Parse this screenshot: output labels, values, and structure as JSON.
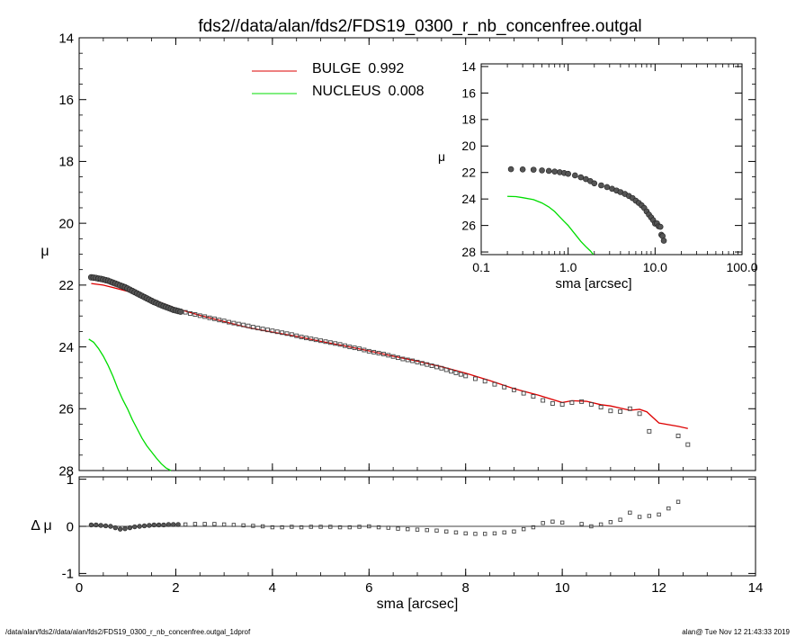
{
  "title": "fds2//data/alan/fds2/FDS19_0300_r_nb_concenfree.outgal",
  "footer": {
    "left": "/data/alan/fds2//data/alan/fds2/FDS19_0300_r_nb_concenfree.outgal_1dprof",
    "right": "alan@  Tue Nov 12 21:43:33 2019"
  },
  "legend": {
    "bulge": {
      "label": "BULGE",
      "value": "0.992",
      "color": "#dd0000"
    },
    "nucleus": {
      "label": "NUCLEUS",
      "value": "0.008",
      "color": "#00dd00"
    }
  },
  "chart_data": [
    {
      "name": "main-profile",
      "type": "scatter",
      "xlabel": "sma [arcsec]",
      "ylabel": "μ",
      "xlim": [
        0,
        14
      ],
      "ylim": [
        28,
        14
      ],
      "xticks": [
        0,
        2,
        4,
        6,
        8,
        10,
        12,
        14
      ],
      "yticks": [
        14,
        16,
        18,
        20,
        22,
        24,
        26,
        28
      ],
      "dense_points": [
        [
          0.25,
          21.75
        ],
        [
          0.3,
          21.76
        ],
        [
          0.35,
          21.77
        ],
        [
          0.4,
          21.79
        ],
        [
          0.45,
          21.8
        ],
        [
          0.5,
          21.82
        ],
        [
          0.55,
          21.84
        ],
        [
          0.6,
          21.86
        ],
        [
          0.65,
          21.89
        ],
        [
          0.7,
          21.92
        ],
        [
          0.75,
          21.95
        ],
        [
          0.8,
          21.98
        ],
        [
          0.85,
          22.01
        ],
        [
          0.9,
          22.04
        ],
        [
          0.95,
          22.07
        ],
        [
          1.0,
          22.11
        ],
        [
          1.05,
          22.15
        ],
        [
          1.1,
          22.19
        ],
        [
          1.15,
          22.23
        ],
        [
          1.2,
          22.27
        ],
        [
          1.25,
          22.31
        ],
        [
          1.3,
          22.35
        ],
        [
          1.35,
          22.39
        ],
        [
          1.4,
          22.43
        ],
        [
          1.45,
          22.47
        ],
        [
          1.5,
          22.51
        ],
        [
          1.55,
          22.55
        ],
        [
          1.6,
          22.58
        ],
        [
          1.65,
          22.62
        ],
        [
          1.7,
          22.65
        ],
        [
          1.75,
          22.68
        ],
        [
          1.8,
          22.71
        ],
        [
          1.85,
          22.74
        ],
        [
          1.9,
          22.77
        ],
        [
          1.95,
          22.8
        ],
        [
          2.0,
          22.82
        ],
        [
          2.05,
          22.84
        ],
        [
          2.1,
          22.86
        ]
      ],
      "sparse_points": [
        [
          2.2,
          22.88
        ],
        [
          2.3,
          22.92
        ],
        [
          2.4,
          22.95
        ],
        [
          2.5,
          22.99
        ],
        [
          2.6,
          23.02
        ],
        [
          2.7,
          23.06
        ],
        [
          2.8,
          23.09
        ],
        [
          2.9,
          23.13
        ],
        [
          3.0,
          23.16
        ],
        [
          3.1,
          23.2
        ],
        [
          3.2,
          23.23
        ],
        [
          3.3,
          23.26
        ],
        [
          3.4,
          23.29
        ],
        [
          3.5,
          23.32
        ],
        [
          3.6,
          23.36
        ],
        [
          3.7,
          23.39
        ],
        [
          3.8,
          23.42
        ],
        [
          3.9,
          23.45
        ],
        [
          4.0,
          23.48
        ],
        [
          4.1,
          23.51
        ],
        [
          4.2,
          23.54
        ],
        [
          4.3,
          23.57
        ],
        [
          4.4,
          23.6
        ],
        [
          4.5,
          23.64
        ],
        [
          4.6,
          23.68
        ],
        [
          4.7,
          23.71
        ],
        [
          4.8,
          23.74
        ],
        [
          4.9,
          23.77
        ],
        [
          5.0,
          23.8
        ],
        [
          5.1,
          23.83
        ],
        [
          5.2,
          23.86
        ],
        [
          5.3,
          23.89
        ],
        [
          5.4,
          23.92
        ],
        [
          5.5,
          23.96
        ],
        [
          5.6,
          24.0
        ],
        [
          5.7,
          24.03
        ],
        [
          5.8,
          24.06
        ],
        [
          5.9,
          24.1
        ],
        [
          6.0,
          24.14
        ],
        [
          6.1,
          24.17
        ],
        [
          6.2,
          24.2
        ],
        [
          6.3,
          24.23
        ],
        [
          6.4,
          24.27
        ],
        [
          6.5,
          24.31
        ],
        [
          6.6,
          24.35
        ],
        [
          6.7,
          24.39
        ],
        [
          6.8,
          24.42
        ],
        [
          6.9,
          24.45
        ],
        [
          7.0,
          24.49
        ],
        [
          7.1,
          24.53
        ],
        [
          7.2,
          24.57
        ],
        [
          7.3,
          24.61
        ],
        [
          7.4,
          24.65
        ],
        [
          7.5,
          24.69
        ],
        [
          7.6,
          24.74
        ],
        [
          7.7,
          24.79
        ],
        [
          7.8,
          24.84
        ],
        [
          7.9,
          24.89
        ],
        [
          8.0,
          24.94
        ],
        [
          8.2,
          25.03
        ],
        [
          8.4,
          25.11
        ],
        [
          8.6,
          25.21
        ],
        [
          8.8,
          25.3
        ],
        [
          9.0,
          25.39
        ],
        [
          9.2,
          25.5
        ],
        [
          9.4,
          25.6
        ],
        [
          9.6,
          25.73
        ],
        [
          9.8,
          25.83
        ],
        [
          10.0,
          25.86
        ],
        [
          10.2,
          25.8
        ],
        [
          10.4,
          25.77
        ],
        [
          10.6,
          25.86
        ],
        [
          10.8,
          25.95
        ],
        [
          11.0,
          26.07
        ],
        [
          11.2,
          26.09
        ],
        [
          11.4,
          26.0
        ],
        [
          11.6,
          26.16
        ],
        [
          11.8,
          26.73
        ],
        [
          12.4,
          26.88
        ],
        [
          12.6,
          27.16
        ]
      ],
      "bulge_model": [
        [
          0.25,
          21.95
        ],
        [
          0.5,
          22.0
        ],
        [
          1.0,
          22.2
        ],
        [
          1.5,
          22.45
        ],
        [
          2.0,
          22.75
        ],
        [
          2.5,
          22.98
        ],
        [
          3.0,
          23.18
        ],
        [
          3.5,
          23.38
        ],
        [
          4.0,
          23.52
        ],
        [
          4.5,
          23.66
        ],
        [
          5.0,
          23.82
        ],
        [
          5.5,
          23.97
        ],
        [
          6.0,
          24.13
        ],
        [
          6.5,
          24.3
        ],
        [
          7.0,
          24.46
        ],
        [
          7.5,
          24.64
        ],
        [
          8.0,
          24.85
        ],
        [
          8.5,
          25.09
        ],
        [
          9.0,
          25.35
        ],
        [
          9.5,
          25.56
        ],
        [
          10.0,
          25.8
        ],
        [
          10.2,
          25.74
        ],
        [
          10.5,
          25.76
        ],
        [
          10.8,
          25.87
        ],
        [
          11.0,
          25.91
        ],
        [
          11.4,
          26.05
        ],
        [
          11.6,
          26.02
        ],
        [
          11.75,
          26.1
        ],
        [
          12.0,
          26.46
        ],
        [
          12.4,
          26.57
        ],
        [
          12.6,
          26.64
        ]
      ],
      "nucleus_model": [
        [
          0.2,
          23.75
        ],
        [
          0.3,
          23.85
        ],
        [
          0.4,
          24.05
        ],
        [
          0.5,
          24.3
        ],
        [
          0.6,
          24.6
        ],
        [
          0.7,
          24.95
        ],
        [
          0.8,
          25.35
        ],
        [
          0.9,
          25.7
        ],
        [
          1.0,
          26.0
        ],
        [
          1.1,
          26.35
        ],
        [
          1.2,
          26.65
        ],
        [
          1.3,
          26.95
        ],
        [
          1.4,
          27.2
        ],
        [
          1.5,
          27.4
        ],
        [
          1.6,
          27.6
        ],
        [
          1.7,
          27.78
        ],
        [
          1.8,
          27.92
        ],
        [
          1.9,
          28.0
        ]
      ]
    },
    {
      "name": "residuals",
      "type": "scatter",
      "xlabel": "sma [arcsec]",
      "ylabel": "Δ μ",
      "xlim": [
        0,
        14
      ],
      "ylim": [
        -1.05,
        1.05
      ],
      "xticks": [
        0,
        2,
        4,
        6,
        8,
        10,
        12,
        14
      ],
      "yticks": [
        -1,
        0,
        1
      ],
      "dense_points": [
        [
          0.25,
          0.03
        ],
        [
          0.35,
          0.03
        ],
        [
          0.45,
          0.02
        ],
        [
          0.55,
          0.01
        ],
        [
          0.65,
          0.0
        ],
        [
          0.75,
          -0.03
        ],
        [
          0.85,
          -0.06
        ],
        [
          0.95,
          -0.05
        ],
        [
          1.05,
          -0.03
        ],
        [
          1.15,
          -0.01
        ],
        [
          1.25,
          0.0
        ],
        [
          1.35,
          0.01
        ],
        [
          1.45,
          0.02
        ],
        [
          1.55,
          0.03
        ],
        [
          1.65,
          0.03
        ],
        [
          1.75,
          0.03
        ],
        [
          1.85,
          0.04
        ],
        [
          1.95,
          0.04
        ],
        [
          2.05,
          0.04
        ]
      ],
      "sparse_points": [
        [
          2.2,
          0.04
        ],
        [
          2.4,
          0.05
        ],
        [
          2.6,
          0.05
        ],
        [
          2.8,
          0.05
        ],
        [
          3.0,
          0.04
        ],
        [
          3.2,
          0.03
        ],
        [
          3.4,
          0.02
        ],
        [
          3.6,
          0.01
        ],
        [
          3.8,
          0.0
        ],
        [
          4.0,
          -0.02
        ],
        [
          4.2,
          -0.02
        ],
        [
          4.4,
          -0.01
        ],
        [
          4.6,
          -0.02
        ],
        [
          4.8,
          -0.01
        ],
        [
          5.0,
          -0.01
        ],
        [
          5.2,
          -0.01
        ],
        [
          5.4,
          -0.02
        ],
        [
          5.6,
          -0.02
        ],
        [
          5.8,
          -0.01
        ],
        [
          6.0,
          0.0
        ],
        [
          6.2,
          -0.02
        ],
        [
          6.4,
          -0.03
        ],
        [
          6.6,
          -0.05
        ],
        [
          6.8,
          -0.06
        ],
        [
          7.0,
          -0.07
        ],
        [
          7.2,
          -0.08
        ],
        [
          7.4,
          -0.09
        ],
        [
          7.6,
          -0.11
        ],
        [
          7.8,
          -0.13
        ],
        [
          8.0,
          -0.15
        ],
        [
          8.2,
          -0.16
        ],
        [
          8.4,
          -0.16
        ],
        [
          8.6,
          -0.15
        ],
        [
          8.8,
          -0.13
        ],
        [
          9.0,
          -0.11
        ],
        [
          9.2,
          -0.06
        ],
        [
          9.4,
          -0.02
        ],
        [
          9.6,
          0.07
        ],
        [
          9.8,
          0.1
        ],
        [
          10.0,
          0.08
        ],
        [
          10.4,
          0.05
        ],
        [
          10.6,
          0.0
        ],
        [
          10.8,
          0.04
        ],
        [
          11.0,
          0.09
        ],
        [
          11.2,
          0.14
        ],
        [
          11.4,
          0.29
        ],
        [
          11.6,
          0.2
        ],
        [
          11.8,
          0.22
        ],
        [
          12.0,
          0.25
        ],
        [
          12.2,
          0.38
        ],
        [
          12.4,
          0.52
        ]
      ]
    },
    {
      "name": "inset-log-profile",
      "type": "scatter",
      "xlabel": "sma [arcsec]",
      "ylabel": "μ",
      "xscale": "log",
      "xlim": [
        0.1,
        100.0
      ],
      "ylim": [
        28.2,
        13.8
      ],
      "xticks": [
        "0.1",
        "1.0",
        "10.0",
        "100.0"
      ],
      "yticks": [
        14,
        16,
        18,
        20,
        22,
        24,
        26,
        28
      ],
      "points": [
        [
          0.22,
          21.75
        ],
        [
          0.3,
          21.77
        ],
        [
          0.4,
          21.79
        ],
        [
          0.5,
          21.84
        ],
        [
          0.6,
          21.88
        ],
        [
          0.7,
          21.93
        ],
        [
          0.8,
          21.98
        ],
        [
          0.9,
          22.04
        ],
        [
          1.0,
          22.1
        ],
        [
          1.2,
          22.22
        ],
        [
          1.4,
          22.36
        ],
        [
          1.6,
          22.5
        ],
        [
          1.8,
          22.65
        ],
        [
          2.0,
          22.82
        ],
        [
          2.4,
          22.97
        ],
        [
          2.8,
          23.1
        ],
        [
          3.2,
          23.23
        ],
        [
          3.6,
          23.36
        ],
        [
          4.0,
          23.48
        ],
        [
          4.5,
          23.62
        ],
        [
          5.0,
          23.77
        ],
        [
          5.5,
          23.93
        ],
        [
          6.0,
          24.13
        ],
        [
          6.5,
          24.3
        ],
        [
          7.0,
          24.48
        ],
        [
          7.5,
          24.68
        ],
        [
          8.0,
          24.94
        ],
        [
          8.5,
          25.18
        ],
        [
          9.0,
          25.39
        ],
        [
          9.5,
          25.6
        ],
        [
          10.0,
          25.86
        ],
        [
          10.5,
          25.84
        ],
        [
          11.0,
          26.06
        ],
        [
          11.5,
          26.1
        ],
        [
          11.8,
          26.7
        ],
        [
          12.2,
          26.8
        ],
        [
          12.6,
          27.15
        ]
      ],
      "nucleus_model": [
        [
          0.2,
          23.8
        ],
        [
          0.25,
          23.82
        ],
        [
          0.3,
          23.9
        ],
        [
          0.4,
          24.05
        ],
        [
          0.5,
          24.3
        ],
        [
          0.6,
          24.6
        ],
        [
          0.7,
          24.95
        ],
        [
          0.8,
          25.35
        ],
        [
          0.9,
          25.7
        ],
        [
          1.0,
          26.0
        ],
        [
          1.2,
          26.65
        ],
        [
          1.4,
          27.2
        ],
        [
          1.6,
          27.6
        ],
        [
          1.8,
          27.92
        ],
        [
          1.95,
          28.2
        ]
      ]
    }
  ]
}
